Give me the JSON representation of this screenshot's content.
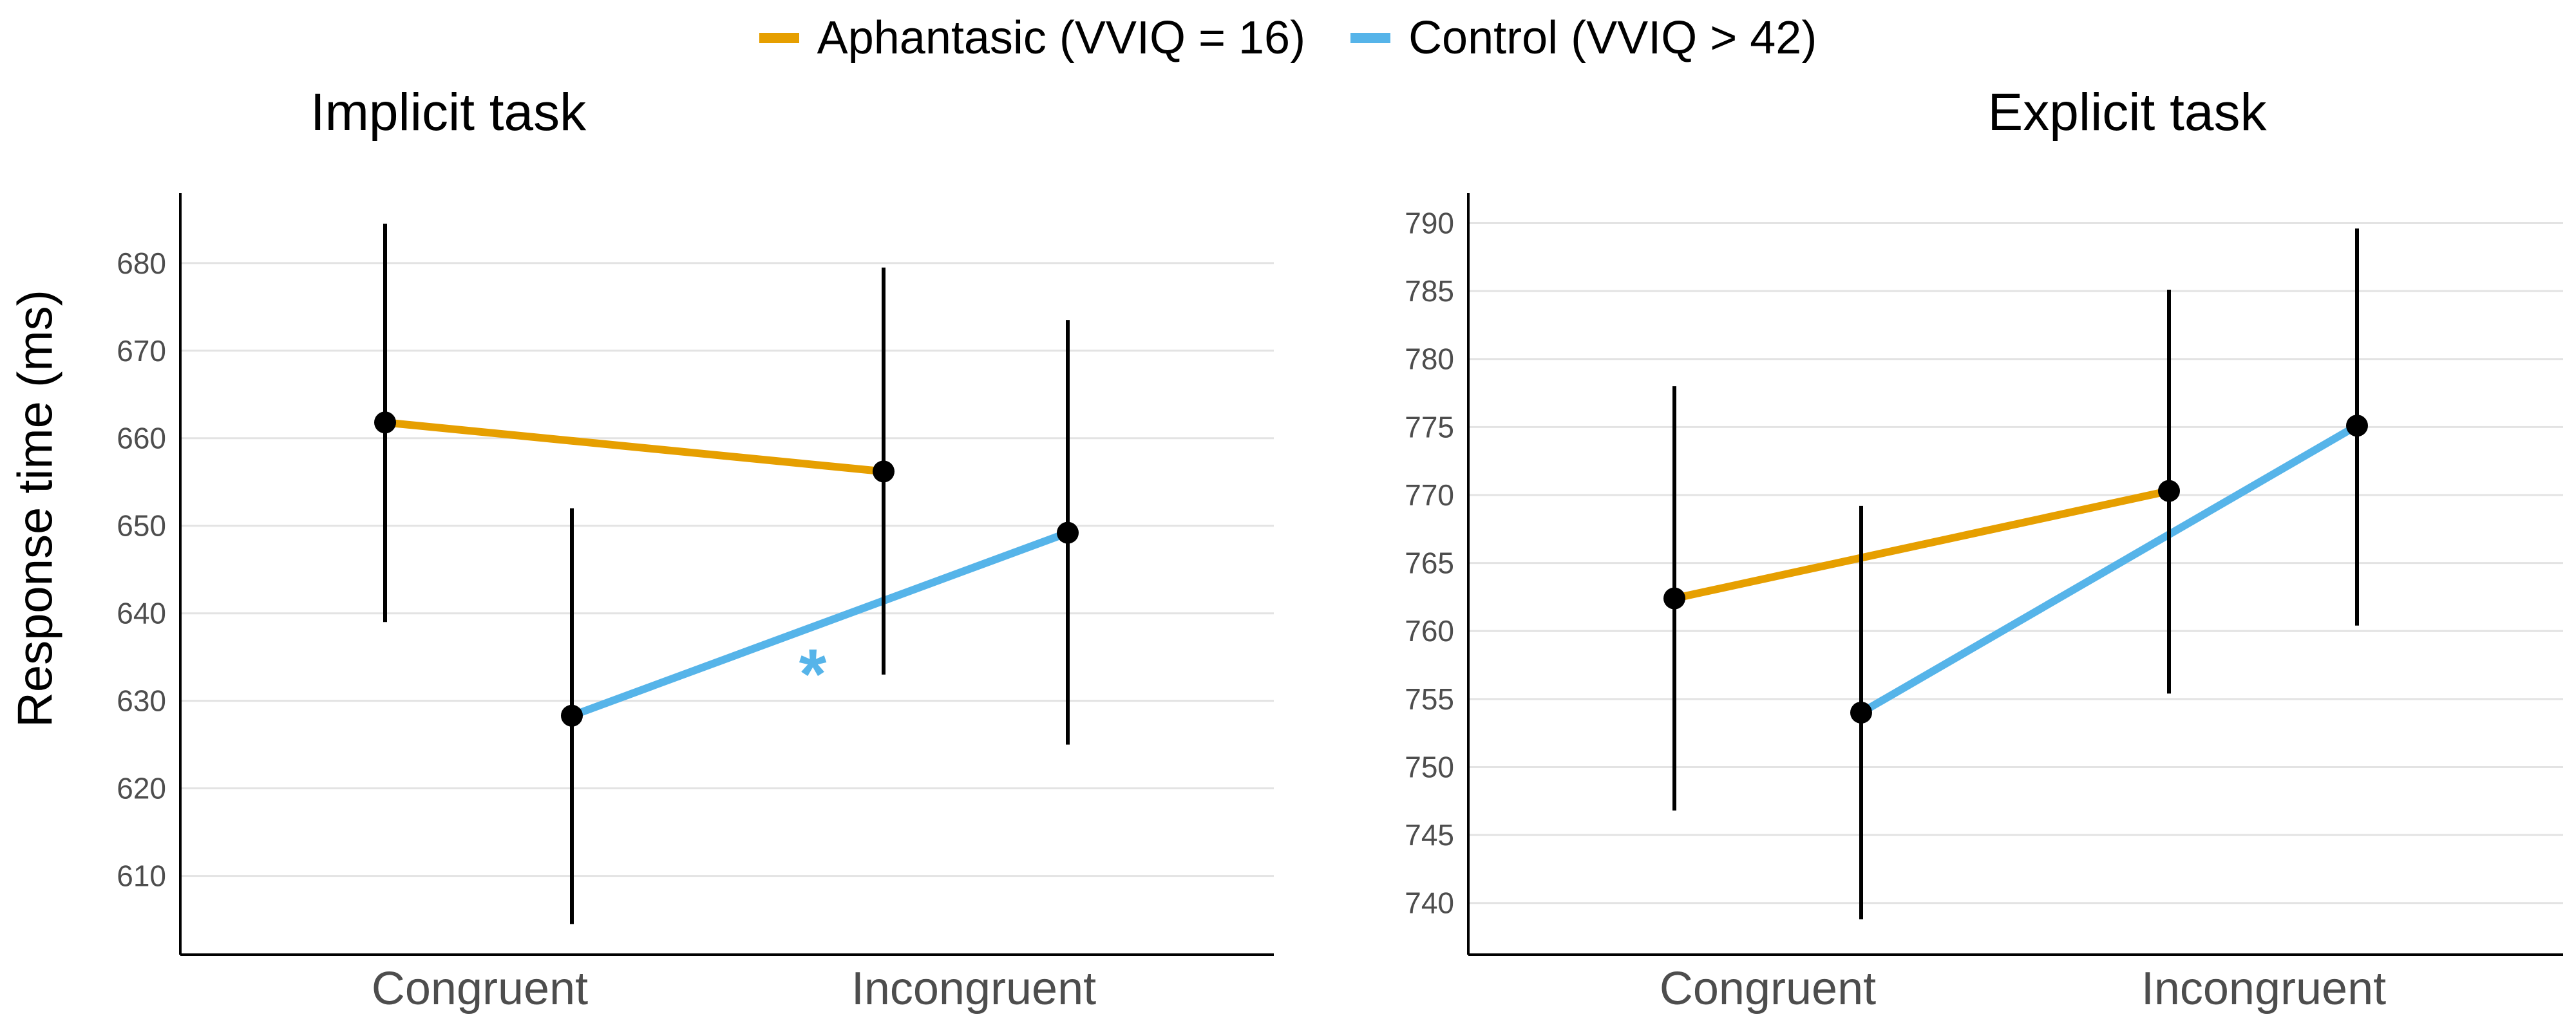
{
  "legend": [
    {
      "label": "Aphantasic (VVIQ = 16)",
      "color": "#E69F00"
    },
    {
      "label": "Control (VVIQ > 42)",
      "color": "#56B4E9"
    }
  ],
  "y_axis_label": "Response time (ms)",
  "chart_data": [
    {
      "type": "line",
      "title": "Implicit task",
      "xlabel": "",
      "ylabel": "Response time (ms)",
      "categories": [
        "Congruent",
        "Incongruent"
      ],
      "ylim": [
        601,
        688
      ],
      "yticks": [
        610,
        620,
        630,
        640,
        650,
        660,
        670,
        680
      ],
      "grid": true,
      "series": [
        {
          "name": "Aphantasic (VVIQ = 16)",
          "color": "#E69F00",
          "values": [
            661.8,
            656.2
          ],
          "lower": [
            639.0,
            633.0
          ],
          "upper": [
            684.5,
            679.5
          ]
        },
        {
          "name": "Control (VVIQ > 42)",
          "color": "#56B4E9",
          "values": [
            628.3,
            649.2
          ],
          "lower": [
            604.5,
            625.0
          ],
          "upper": [
            652.0,
            673.5
          ]
        }
      ],
      "annotation": {
        "text": "*",
        "color": "#56B4E9"
      }
    },
    {
      "type": "line",
      "title": "Explicit task",
      "xlabel": "",
      "ylabel": "",
      "categories": [
        "Congruent",
        "Incongruent"
      ],
      "ylim": [
        736.2,
        792.2
      ],
      "yticks": [
        740,
        745,
        750,
        755,
        760,
        765,
        770,
        775,
        780,
        785,
        790
      ],
      "grid": true,
      "series": [
        {
          "name": "Aphantasic (VVIQ = 16)",
          "color": "#E69F00",
          "values": [
            762.4,
            770.3
          ],
          "lower": [
            746.8,
            755.4
          ],
          "upper": [
            778.0,
            785.1
          ]
        },
        {
          "name": "Control (VVIQ > 42)",
          "color": "#56B4E9",
          "values": [
            754.0,
            775.1
          ],
          "lower": [
            738.8,
            760.4
          ],
          "upper": [
            769.2,
            789.6
          ]
        }
      ]
    }
  ]
}
